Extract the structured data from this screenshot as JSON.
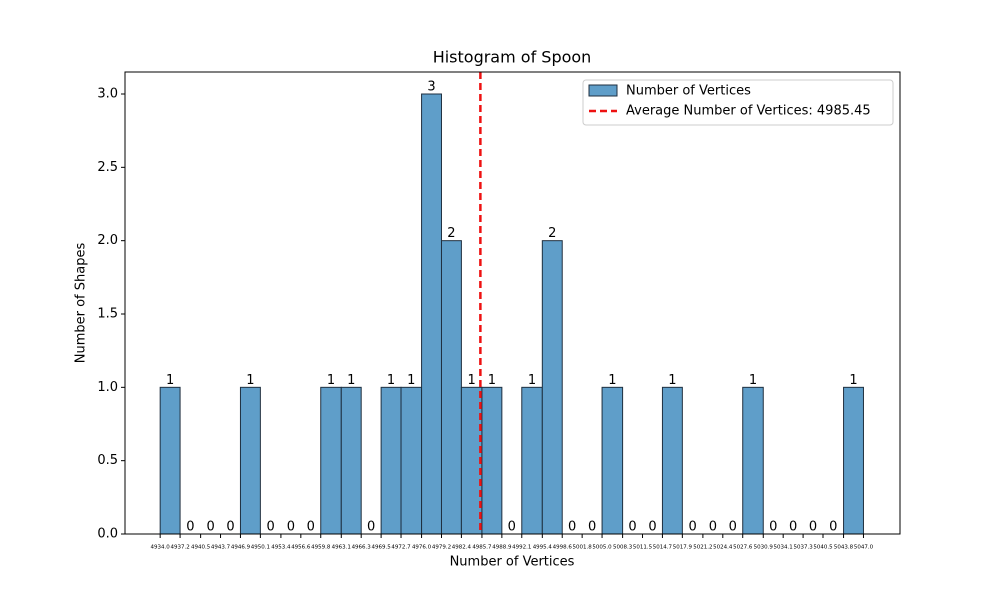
{
  "chart_data": {
    "type": "histogram",
    "title": "Histogram of Spoon",
    "xlabel": "Number of Vertices",
    "ylabel": "Number of Shapes",
    "bins": [
      4934.0,
      4937.2,
      4940.5,
      4943.7,
      4946.9,
      4950.1,
      4953.4,
      4956.6,
      4959.8,
      4963.1,
      4966.3,
      4969.5,
      4972.7,
      4976.0,
      4979.2,
      4982.4,
      4985.7,
      4988.9,
      4992.1,
      4995.4,
      4998.6,
      5001.8,
      5005.0,
      5008.3,
      5011.5,
      5014.7,
      5017.9,
      5021.2,
      5024.4,
      5027.6,
      5030.9,
      5034.1,
      5037.3,
      5040.5,
      5043.8,
      5047.0
    ],
    "series": [
      {
        "name": "Number of Vertices",
        "color": "#5f9ec9",
        "edgecolor": "#1f2f3f",
        "values": [
          1,
          0,
          0,
          0,
          1,
          0,
          0,
          0,
          1,
          1,
          0,
          1,
          1,
          3,
          2,
          1,
          1,
          0,
          1,
          2,
          0,
          0,
          1,
          0,
          0,
          1,
          0,
          0,
          0,
          1,
          0,
          0,
          0,
          0,
          1
        ]
      }
    ],
    "mean_line": {
      "value": 4985.45,
      "label": "Average Number of Vertices: 4985.45",
      "color": "#ee1111"
    },
    "xlim": [
      4928.35,
      5052.87
    ],
    "ylim": [
      0,
      3.15
    ],
    "xticks": [
      {
        "value": 4934.0,
        "label": "4934.0"
      },
      {
        "value": 4937.2,
        "label": "4937.2"
      },
      {
        "value": 4940.5,
        "label": "4940.5"
      },
      {
        "value": 4943.7,
        "label": "4943.7"
      },
      {
        "value": 4946.9,
        "label": "4946.9"
      },
      {
        "value": 4950.1,
        "label": "4950.1"
      },
      {
        "value": 4953.4,
        "label": "4953.4"
      },
      {
        "value": 4956.6,
        "label": "4956.6"
      },
      {
        "value": 4959.8,
        "label": "4959.8"
      },
      {
        "value": 4963.1,
        "label": "4963.1"
      },
      {
        "value": 4966.3,
        "label": "4966.3"
      },
      {
        "value": 4969.5,
        "label": "4969.5"
      },
      {
        "value": 4972.7,
        "label": "4972.7"
      },
      {
        "value": 4976.0,
        "label": "4976.0"
      },
      {
        "value": 4979.2,
        "label": "4979.2"
      },
      {
        "value": 4982.4,
        "label": "4982.4"
      },
      {
        "value": 4985.7,
        "label": "4985.7"
      },
      {
        "value": 4988.9,
        "label": "4988.9"
      },
      {
        "value": 4992.1,
        "label": "4992.1"
      },
      {
        "value": 4995.4,
        "label": "4995.4"
      },
      {
        "value": 4998.6,
        "label": "4998.6"
      },
      {
        "value": 5001.8,
        "label": "5001.8"
      },
      {
        "value": 5005.0,
        "label": "5005.0"
      },
      {
        "value": 5008.3,
        "label": "5008.3"
      },
      {
        "value": 5011.5,
        "label": "5011.5"
      },
      {
        "value": 5014.7,
        "label": "5014.7"
      },
      {
        "value": 5017.9,
        "label": "5017.9"
      },
      {
        "value": 5021.2,
        "label": "5021.2"
      },
      {
        "value": 5024.4,
        "label": "5024.4"
      },
      {
        "value": 5027.6,
        "label": "5027.6"
      },
      {
        "value": 5030.9,
        "label": "5030.9"
      },
      {
        "value": 5034.1,
        "label": "5034.1"
      },
      {
        "value": 5037.3,
        "label": "5037.3"
      },
      {
        "value": 5040.5,
        "label": "5040.5"
      },
      {
        "value": 5043.8,
        "label": "5043.8"
      },
      {
        "value": 5047.0,
        "label": "5047.0"
      }
    ],
    "yticks": [
      {
        "value": 0,
        "label": "0.0"
      },
      {
        "value": 0.5,
        "label": "0.5"
      },
      {
        "value": 1,
        "label": "1.0"
      },
      {
        "value": 1.5,
        "label": "1.5"
      },
      {
        "value": 2,
        "label": "2.0"
      },
      {
        "value": 2.5,
        "label": "2.5"
      },
      {
        "value": 3,
        "label": "3.0"
      }
    ],
    "legend": "upper right"
  }
}
